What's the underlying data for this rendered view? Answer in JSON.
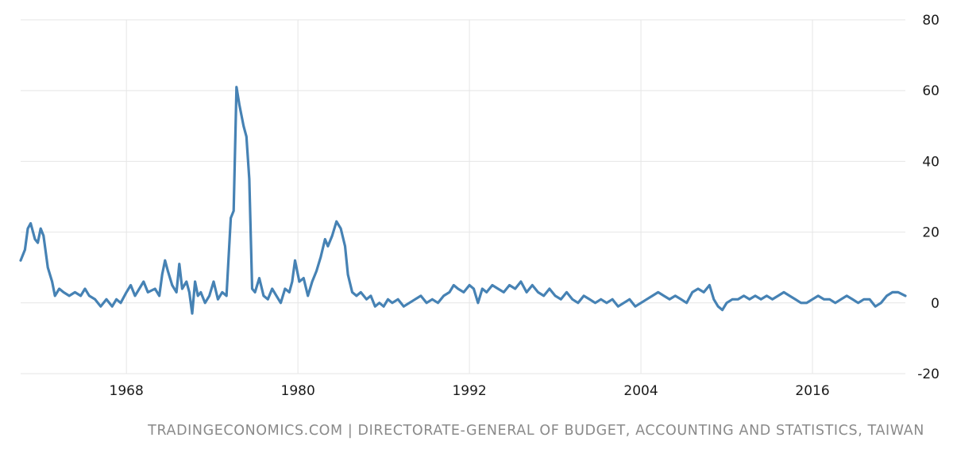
{
  "source_text": "TRADINGECONOMICS.COM | DIRECTORATE-GENERAL OF BUDGET, ACCOUNTING AND STATISTICS, TAIWAN",
  "colors": {
    "line": "#4682b4",
    "grid": "#e6e6e6",
    "source_text": "#8a8a8a"
  },
  "chart_data": {
    "type": "line",
    "title": "",
    "xlabel": "",
    "ylabel": "",
    "xlim": [
      1960.6,
      2022.5
    ],
    "ylim": [
      -20,
      80
    ],
    "y_axis_position": "right",
    "grid": true,
    "x_ticks": [
      1968,
      1980,
      1992,
      2004,
      2016
    ],
    "x_tick_labels": [
      "1968",
      "1980",
      "1992",
      "2004",
      "2016"
    ],
    "y_ticks": [
      80,
      60,
      40,
      20,
      0,
      -20
    ],
    "y_tick_labels": [
      "80",
      "60",
      "40",
      "20",
      "0",
      "-20"
    ],
    "series": [
      {
        "points": [
          [
            1960.6,
            12
          ],
          [
            1960.9,
            15
          ],
          [
            1961.1,
            21
          ],
          [
            1961.3,
            22.5
          ],
          [
            1961.6,
            18
          ],
          [
            1961.8,
            17
          ],
          [
            1962.0,
            21
          ],
          [
            1962.2,
            19
          ],
          [
            1962.5,
            10
          ],
          [
            1962.8,
            6
          ],
          [
            1963.0,
            2
          ],
          [
            1963.3,
            4
          ],
          [
            1963.6,
            3
          ],
          [
            1964.0,
            2
          ],
          [
            1964.4,
            3
          ],
          [
            1964.8,
            2
          ],
          [
            1965.1,
            4
          ],
          [
            1965.4,
            2
          ],
          [
            1965.8,
            1
          ],
          [
            1966.2,
            -1
          ],
          [
            1966.6,
            1
          ],
          [
            1967.0,
            -1
          ],
          [
            1967.3,
            1
          ],
          [
            1967.6,
            0
          ],
          [
            1968.0,
            3
          ],
          [
            1968.3,
            5
          ],
          [
            1968.6,
            2
          ],
          [
            1968.9,
            4
          ],
          [
            1969.2,
            6
          ],
          [
            1969.5,
            3
          ],
          [
            1970.0,
            4
          ],
          [
            1970.3,
            2
          ],
          [
            1970.5,
            8
          ],
          [
            1970.7,
            12
          ],
          [
            1970.9,
            9
          ],
          [
            1971.2,
            5
          ],
          [
            1971.5,
            3
          ],
          [
            1971.7,
            11
          ],
          [
            1971.9,
            4
          ],
          [
            1972.2,
            6
          ],
          [
            1972.4,
            3
          ],
          [
            1972.6,
            -3
          ],
          [
            1972.8,
            6
          ],
          [
            1973.0,
            2
          ],
          [
            1973.2,
            3
          ],
          [
            1973.5,
            0
          ],
          [
            1973.8,
            2
          ],
          [
            1974.1,
            6
          ],
          [
            1974.4,
            1
          ],
          [
            1974.7,
            3
          ],
          [
            1975.0,
            2
          ],
          [
            1975.3,
            24
          ],
          [
            1975.5,
            26
          ],
          [
            1975.7,
            61
          ],
          [
            1975.9,
            56
          ],
          [
            1976.2,
            50
          ],
          [
            1976.4,
            47
          ],
          [
            1976.6,
            35
          ],
          [
            1976.8,
            4
          ],
          [
            1977.0,
            3
          ],
          [
            1977.3,
            7
          ],
          [
            1977.6,
            2
          ],
          [
            1977.9,
            1
          ],
          [
            1978.2,
            4
          ],
          [
            1978.5,
            2
          ],
          [
            1978.8,
            0
          ],
          [
            1979.1,
            4
          ],
          [
            1979.4,
            3
          ],
          [
            1979.6,
            6
          ],
          [
            1979.8,
            12
          ],
          [
            1980.1,
            6
          ],
          [
            1980.4,
            7
          ],
          [
            1980.7,
            2
          ],
          [
            1981.0,
            6
          ],
          [
            1981.3,
            9
          ],
          [
            1981.6,
            13
          ],
          [
            1981.9,
            18
          ],
          [
            1982.1,
            16
          ],
          [
            1982.4,
            19
          ],
          [
            1982.7,
            23
          ],
          [
            1983.0,
            21
          ],
          [
            1983.3,
            16
          ],
          [
            1983.5,
            8
          ],
          [
            1983.8,
            3
          ],
          [
            1984.1,
            2
          ],
          [
            1984.4,
            3
          ],
          [
            1984.8,
            1
          ],
          [
            1985.1,
            2
          ],
          [
            1985.4,
            -1
          ],
          [
            1985.7,
            0
          ],
          [
            1986.0,
            -1
          ],
          [
            1986.3,
            1
          ],
          [
            1986.6,
            0
          ],
          [
            1987.0,
            1
          ],
          [
            1987.4,
            -1
          ],
          [
            1987.8,
            0
          ],
          [
            1988.2,
            1
          ],
          [
            1988.6,
            2
          ],
          [
            1989.0,
            0
          ],
          [
            1989.4,
            1
          ],
          [
            1989.8,
            0
          ],
          [
            1990.2,
            2
          ],
          [
            1990.6,
            3
          ],
          [
            1990.9,
            5
          ],
          [
            1991.2,
            4
          ],
          [
            1991.6,
            3
          ],
          [
            1992.0,
            5
          ],
          [
            1992.3,
            4
          ],
          [
            1992.6,
            0
          ],
          [
            1992.9,
            4
          ],
          [
            1993.2,
            3
          ],
          [
            1993.6,
            5
          ],
          [
            1994.0,
            4
          ],
          [
            1994.4,
            3
          ],
          [
            1994.8,
            5
          ],
          [
            1995.2,
            4
          ],
          [
            1995.6,
            6
          ],
          [
            1996.0,
            3
          ],
          [
            1996.4,
            5
          ],
          [
            1996.8,
            3
          ],
          [
            1997.2,
            2
          ],
          [
            1997.6,
            4
          ],
          [
            1998.0,
            2
          ],
          [
            1998.4,
            1
          ],
          [
            1998.8,
            3
          ],
          [
            1999.2,
            1
          ],
          [
            1999.6,
            0
          ],
          [
            2000.0,
            2
          ],
          [
            2000.4,
            1
          ],
          [
            2000.8,
            0
          ],
          [
            2001.2,
            1
          ],
          [
            2001.6,
            0
          ],
          [
            2002.0,
            1
          ],
          [
            2002.4,
            -1
          ],
          [
            2002.8,
            0
          ],
          [
            2003.2,
            1
          ],
          [
            2003.6,
            -1
          ],
          [
            2004.0,
            0
          ],
          [
            2004.4,
            1
          ],
          [
            2004.8,
            2
          ],
          [
            2005.2,
            3
          ],
          [
            2005.6,
            2
          ],
          [
            2006.0,
            1
          ],
          [
            2006.4,
            2
          ],
          [
            2006.8,
            1
          ],
          [
            2007.2,
            0
          ],
          [
            2007.6,
            3
          ],
          [
            2008.0,
            4
          ],
          [
            2008.4,
            3
          ],
          [
            2008.8,
            5
          ],
          [
            2009.1,
            1
          ],
          [
            2009.4,
            -1
          ],
          [
            2009.7,
            -2
          ],
          [
            2010.0,
            0
          ],
          [
            2010.4,
            1
          ],
          [
            2010.8,
            1
          ],
          [
            2011.2,
            2
          ],
          [
            2011.6,
            1
          ],
          [
            2012.0,
            2
          ],
          [
            2012.4,
            1
          ],
          [
            2012.8,
            2
          ],
          [
            2013.2,
            1
          ],
          [
            2013.6,
            2
          ],
          [
            2014.0,
            3
          ],
          [
            2014.4,
            2
          ],
          [
            2014.8,
            1
          ],
          [
            2015.2,
            0
          ],
          [
            2015.6,
            0
          ],
          [
            2016.0,
            1
          ],
          [
            2016.4,
            2
          ],
          [
            2016.8,
            1
          ],
          [
            2017.2,
            1
          ],
          [
            2017.6,
            0
          ],
          [
            2018.0,
            1
          ],
          [
            2018.4,
            2
          ],
          [
            2018.8,
            1
          ],
          [
            2019.2,
            0
          ],
          [
            2019.6,
            1
          ],
          [
            2020.0,
            1
          ],
          [
            2020.4,
            -1
          ],
          [
            2020.8,
            0
          ],
          [
            2021.2,
            2
          ],
          [
            2021.6,
            3
          ],
          [
            2022.0,
            3
          ],
          [
            2022.5,
            2
          ]
        ]
      }
    ]
  }
}
